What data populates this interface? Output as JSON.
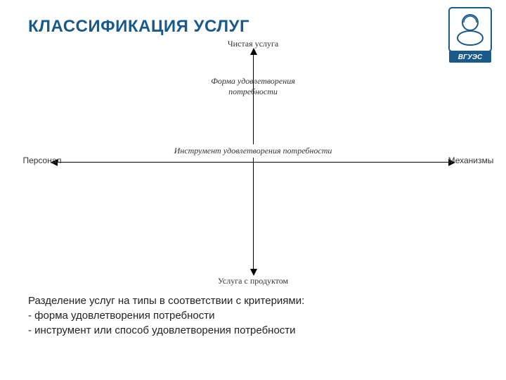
{
  "title": "КЛАССИФИКАЦИЯ УСЛУГ",
  "title_color": "#1a5a8a",
  "title_fontsize": 24,
  "logo": {
    "border_color": "#1a5a8a",
    "text": "ВГУЭС"
  },
  "diagram": {
    "type": "cross-axis",
    "axis_color": "#000000",
    "labels": {
      "top": "Чистая услуга",
      "v_axis": "Форма удовлетворения\nпотребности",
      "left": "Персонал",
      "h_axis": "Инструмент удовлетворения потребности",
      "right": "Механизмы",
      "bottom": "Услуга с продуктом"
    },
    "label_fontsize": 12,
    "label_color": "#333333"
  },
  "footer": {
    "line1": "Разделение услуг на типы в соответствии с критериями:",
    "line2": "- форма удовлетворения потребности",
    "line3": "- инструмент или способ удовлетворения потребности",
    "fontsize": 15,
    "color": "#222222"
  }
}
